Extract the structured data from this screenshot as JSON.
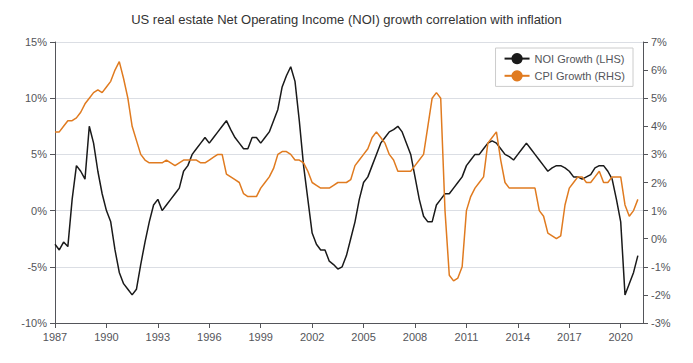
{
  "chart_data": {
    "type": "line",
    "title": "US real estate Net Operating Income (NOI) growth correlation with inflation",
    "x": [
      1987.0,
      1987.25,
      1987.5,
      1987.75,
      1988.0,
      1988.25,
      1988.5,
      1988.75,
      1989.0,
      1989.25,
      1989.5,
      1989.75,
      1990.0,
      1990.25,
      1990.5,
      1990.75,
      1991.0,
      1991.25,
      1991.5,
      1991.75,
      1992.0,
      1992.25,
      1992.5,
      1992.75,
      1993.0,
      1993.25,
      1993.5,
      1993.75,
      1994.0,
      1994.25,
      1994.5,
      1994.75,
      1995.0,
      1995.25,
      1995.5,
      1995.75,
      1996.0,
      1996.25,
      1996.5,
      1996.75,
      1997.0,
      1997.25,
      1997.5,
      1997.75,
      1998.0,
      1998.25,
      1998.5,
      1998.75,
      1999.0,
      1999.25,
      1999.5,
      1999.75,
      2000.0,
      2000.25,
      2000.5,
      2000.75,
      2001.0,
      2001.25,
      2001.5,
      2001.75,
      2002.0,
      2002.25,
      2002.5,
      2002.75,
      2003.0,
      2003.25,
      2003.5,
      2003.75,
      2004.0,
      2004.25,
      2004.5,
      2004.75,
      2005.0,
      2005.25,
      2005.5,
      2005.75,
      2006.0,
      2006.25,
      2006.5,
      2006.75,
      2007.0,
      2007.25,
      2007.5,
      2007.75,
      2008.0,
      2008.25,
      2008.5,
      2008.75,
      2009.0,
      2009.25,
      2009.5,
      2009.75,
      2010.0,
      2010.25,
      2010.5,
      2010.75,
      2011.0,
      2011.25,
      2011.5,
      2011.75,
      2012.0,
      2012.25,
      2012.5,
      2012.75,
      2013.0,
      2013.25,
      2013.5,
      2013.75,
      2014.0,
      2014.25,
      2014.5,
      2014.75,
      2015.0,
      2015.25,
      2015.5,
      2015.75,
      2016.0,
      2016.25,
      2016.5,
      2016.75,
      2017.0,
      2017.25,
      2017.5,
      2017.75,
      2018.0,
      2018.25,
      2018.5,
      2018.75,
      2019.0,
      2019.25,
      2019.5,
      2019.75,
      2020.0,
      2020.25,
      2020.5,
      2020.75,
      2021.0
    ],
    "xlim": [
      1987,
      2021.3
    ],
    "xticks": [
      1987,
      1990,
      1993,
      1996,
      1999,
      2002,
      2005,
      2008,
      2011,
      2014,
      2017,
      2020
    ],
    "ylim": [
      -0.1,
      0.15
    ],
    "yticks": [
      {
        "value": -0.1,
        "label": "-10%"
      },
      {
        "value": -0.05,
        "label": "-5%"
      },
      {
        "value": 0.0,
        "label": "0%"
      },
      {
        "value": 0.05,
        "label": "5%"
      },
      {
        "value": 0.1,
        "label": "10%"
      },
      {
        "value": 0.15,
        "label": "15%"
      }
    ],
    "y2lim": [
      -0.03,
      0.07
    ],
    "y2ticks": [
      {
        "value": -0.03,
        "label": "-3%"
      },
      {
        "value": -0.02,
        "label": "-2%"
      },
      {
        "value": -0.01,
        "label": "-1%"
      },
      {
        "value": 0.0,
        "label": "0%"
      },
      {
        "value": 0.01,
        "label": "1%"
      },
      {
        "value": 0.02,
        "label": "2%"
      },
      {
        "value": 0.03,
        "label": "3%"
      },
      {
        "value": 0.04,
        "label": "4%"
      },
      {
        "value": 0.05,
        "label": "5%"
      },
      {
        "value": 0.06,
        "label": "6%"
      },
      {
        "value": 0.07,
        "label": "7%"
      }
    ],
    "grid": true,
    "legend": "upper right",
    "series": [
      {
        "name": "NOI Growth (LHS)",
        "color": "#1a1a1a",
        "values": [
          -0.03,
          -0.035,
          -0.028,
          -0.032,
          0.01,
          0.04,
          0.035,
          0.028,
          0.075,
          0.06,
          0.035,
          0.015,
          0.0,
          -0.01,
          -0.035,
          -0.055,
          -0.065,
          -0.07,
          -0.075,
          -0.07,
          -0.048,
          -0.028,
          -0.01,
          0.005,
          0.01,
          0.0,
          0.005,
          0.01,
          0.015,
          0.02,
          0.035,
          0.04,
          0.05,
          0.055,
          0.06,
          0.065,
          0.06,
          0.065,
          0.07,
          0.075,
          0.08,
          0.072,
          0.065,
          0.06,
          0.055,
          0.055,
          0.065,
          0.065,
          0.06,
          0.065,
          0.07,
          0.08,
          0.09,
          0.11,
          0.12,
          0.128,
          0.115,
          0.08,
          0.04,
          0.01,
          -0.02,
          -0.03,
          -0.035,
          -0.035,
          -0.045,
          -0.048,
          -0.052,
          -0.05,
          -0.04,
          -0.025,
          -0.01,
          0.01,
          0.025,
          0.03,
          0.04,
          0.05,
          0.06,
          0.065,
          0.07,
          0.072,
          0.075,
          0.07,
          0.06,
          0.05,
          0.03,
          0.01,
          -0.005,
          -0.01,
          -0.01,
          0.005,
          0.01,
          0.015,
          0.015,
          0.02,
          0.025,
          0.03,
          0.04,
          0.045,
          0.05,
          0.05,
          0.055,
          0.06,
          0.062,
          0.06,
          0.055,
          0.05,
          0.048,
          0.045,
          0.05,
          0.055,
          0.06,
          0.055,
          0.05,
          0.045,
          0.04,
          0.035,
          0.038,
          0.04,
          0.04,
          0.038,
          0.035,
          0.03,
          0.03,
          0.028,
          0.03,
          0.032,
          0.038,
          0.04,
          0.04,
          0.035,
          0.028,
          0.01,
          -0.01,
          -0.075,
          -0.065,
          -0.055,
          -0.04
        ]
      },
      {
        "name": "CPI Growth (RHS)",
        "color": "#e07b20",
        "axis": "y2",
        "values": [
          0.038,
          0.038,
          0.04,
          0.042,
          0.042,
          0.043,
          0.045,
          0.048,
          0.05,
          0.052,
          0.053,
          0.052,
          0.054,
          0.056,
          0.06,
          0.063,
          0.057,
          0.05,
          0.04,
          0.035,
          0.03,
          0.028,
          0.027,
          0.027,
          0.027,
          0.027,
          0.028,
          0.027,
          0.026,
          0.027,
          0.028,
          0.028,
          0.028,
          0.028,
          0.027,
          0.027,
          0.028,
          0.029,
          0.03,
          0.03,
          0.023,
          0.022,
          0.021,
          0.02,
          0.016,
          0.015,
          0.015,
          0.015,
          0.018,
          0.02,
          0.022,
          0.025,
          0.03,
          0.031,
          0.031,
          0.03,
          0.028,
          0.028,
          0.027,
          0.024,
          0.02,
          0.019,
          0.018,
          0.018,
          0.018,
          0.019,
          0.02,
          0.02,
          0.02,
          0.021,
          0.026,
          0.028,
          0.03,
          0.032,
          0.036,
          0.038,
          0.036,
          0.034,
          0.03,
          0.028,
          0.024,
          0.024,
          0.024,
          0.024,
          0.026,
          0.028,
          0.03,
          0.04,
          0.05,
          0.052,
          0.05,
          0.01,
          -0.013,
          -0.015,
          -0.014,
          -0.01,
          0.01,
          0.015,
          0.018,
          0.02,
          0.022,
          0.034,
          0.036,
          0.038,
          0.028,
          0.02,
          0.018,
          0.018,
          0.018,
          0.018,
          0.018,
          0.018,
          0.018,
          0.01,
          0.008,
          0.002,
          0.001,
          0.0,
          0.001,
          0.012,
          0.018,
          0.02,
          0.022,
          0.022,
          0.02,
          0.02,
          0.022,
          0.024,
          0.02,
          0.02,
          0.022,
          0.022,
          0.022,
          0.012,
          0.008,
          0.01,
          0.014
        ]
      }
    ]
  }
}
